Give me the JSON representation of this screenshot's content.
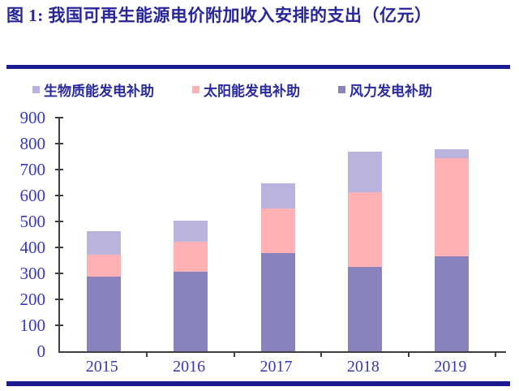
{
  "title": "图 1: 我国可再生能源电价附加收入安排的支出（亿元）",
  "colors": {
    "navy_rule": "#1c1c92",
    "title_text": "#26269a",
    "legend_text": "#2a2aa0",
    "axis_tick_text": "#3838bc",
    "axis_line": "#3f3f3f",
    "wind": "#8983bd",
    "solar": "#ffb1b4",
    "biomass": "#b9b3dd"
  },
  "chart_data": {
    "type": "bar",
    "stacked": true,
    "title": "我国可再生能源电价附加收入安排的支出（亿元）",
    "unit": "亿元",
    "categories": [
      "2015",
      "2016",
      "2017",
      "2018",
      "2019"
    ],
    "series": [
      {
        "name": "风力发电补助",
        "color_key": "wind",
        "values": [
          290,
          307,
          378,
          327,
          368
        ]
      },
      {
        "name": "太阳能发电补助",
        "color_key": "solar",
        "values": [
          82,
          116,
          174,
          287,
          377
        ]
      },
      {
        "name": "生物质能发电补助",
        "color_key": "biomass",
        "values": [
          90,
          80,
          96,
          156,
          33
        ]
      }
    ],
    "stack_totals": [
      462,
      503,
      648,
      770,
      778
    ],
    "legend": [
      {
        "label": "生物质能发电补助",
        "color_key": "biomass"
      },
      {
        "label": "太阳能发电补助",
        "color_key": "solar"
      },
      {
        "label": "风力发电补助",
        "color_key": "wind"
      }
    ],
    "y_ticks": [
      900,
      800,
      700,
      600,
      500,
      400,
      300,
      200,
      100,
      0
    ],
    "ylim": [
      0,
      900
    ],
    "xlabel": "",
    "ylabel": "",
    "grid": false,
    "legend_position": "top"
  }
}
